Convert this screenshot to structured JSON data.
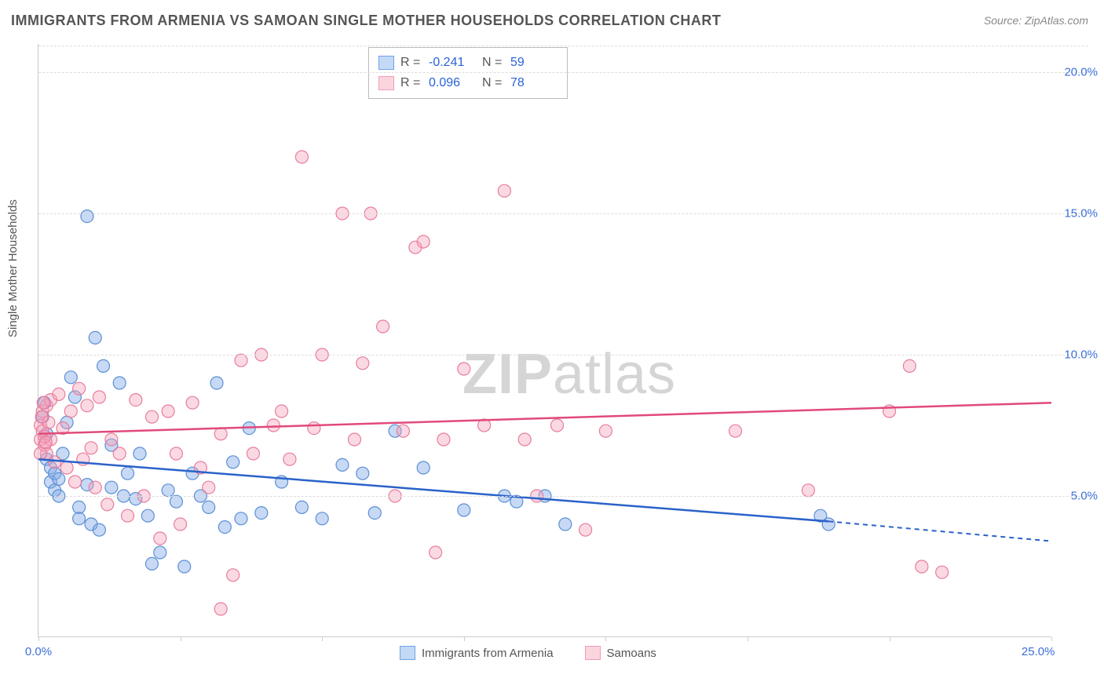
{
  "header": {
    "title": "IMMIGRANTS FROM ARMENIA VS SAMOAN SINGLE MOTHER HOUSEHOLDS CORRELATION CHART",
    "source": "Source: ZipAtlas.com"
  },
  "axes": {
    "y_label": "Single Mother Households",
    "x_min": 0.0,
    "x_max": 25.0,
    "y_min": 0.0,
    "y_max": 21.0,
    "y_ticks": [
      5.0,
      10.0,
      15.0,
      20.0
    ],
    "y_tick_labels": [
      "5.0%",
      "10.0%",
      "15.0%",
      "20.0%"
    ],
    "x_ticks": [
      0.0,
      3.5,
      7.0,
      10.5,
      14.0,
      17.5,
      21.0,
      25.0
    ],
    "x_tick_labels_visible": {
      "0.0": "0.0%",
      "25.0": "25.0%"
    },
    "grid_color": "#dddddd",
    "axis_color": "#cccccc",
    "tick_label_color": "#3b6fd8",
    "tick_label_fontsize": 15
  },
  "series": [
    {
      "name": "Immigrants from Armenia",
      "swatch_fill": "#c3d9f5",
      "swatch_stroke": "#6fa3e8",
      "point_fill": "rgba(130,170,230,0.45)",
      "point_stroke": "#5c8fd6",
      "line_color": "#2a62c9",
      "R": "-0.241",
      "N": "59",
      "regression": {
        "x1": 0.0,
        "y1": 6.3,
        "x2": 19.5,
        "y2": 4.1,
        "x2_dash": 25.0,
        "y2_dash": 3.4
      },
      "points": [
        [
          0.1,
          7.8
        ],
        [
          0.15,
          8.3
        ],
        [
          0.2,
          7.2
        ],
        [
          0.2,
          6.3
        ],
        [
          0.3,
          6.0
        ],
        [
          0.3,
          5.5
        ],
        [
          0.4,
          5.8
        ],
        [
          0.4,
          5.2
        ],
        [
          0.5,
          5.6
        ],
        [
          0.5,
          5.0
        ],
        [
          0.6,
          6.5
        ],
        [
          0.7,
          7.6
        ],
        [
          0.8,
          9.2
        ],
        [
          0.9,
          8.5
        ],
        [
          1.0,
          4.6
        ],
        [
          1.0,
          4.2
        ],
        [
          1.2,
          14.9
        ],
        [
          1.2,
          5.4
        ],
        [
          1.3,
          4.0
        ],
        [
          1.4,
          10.6
        ],
        [
          1.5,
          3.8
        ],
        [
          1.6,
          9.6
        ],
        [
          1.8,
          5.3
        ],
        [
          1.8,
          6.8
        ],
        [
          2.0,
          9.0
        ],
        [
          2.1,
          5.0
        ],
        [
          2.2,
          5.8
        ],
        [
          2.4,
          4.9
        ],
        [
          2.5,
          6.5
        ],
        [
          2.7,
          4.3
        ],
        [
          2.8,
          2.6
        ],
        [
          3.0,
          3.0
        ],
        [
          3.2,
          5.2
        ],
        [
          3.4,
          4.8
        ],
        [
          3.6,
          2.5
        ],
        [
          3.8,
          5.8
        ],
        [
          4.0,
          5.0
        ],
        [
          4.2,
          4.6
        ],
        [
          4.4,
          9.0
        ],
        [
          4.6,
          3.9
        ],
        [
          4.8,
          6.2
        ],
        [
          5.0,
          4.2
        ],
        [
          5.2,
          7.4
        ],
        [
          5.5,
          4.4
        ],
        [
          6.0,
          5.5
        ],
        [
          6.5,
          4.6
        ],
        [
          7.0,
          4.2
        ],
        [
          7.5,
          6.1
        ],
        [
          8.0,
          5.8
        ],
        [
          8.3,
          4.4
        ],
        [
          8.8,
          7.3
        ],
        [
          9.5,
          6.0
        ],
        [
          10.5,
          4.5
        ],
        [
          11.5,
          5.0
        ],
        [
          11.8,
          4.8
        ],
        [
          12.5,
          5.0
        ],
        [
          13.0,
          4.0
        ],
        [
          19.3,
          4.3
        ],
        [
          19.5,
          4.0
        ]
      ]
    },
    {
      "name": "Samoans",
      "swatch_fill": "#fbd5de",
      "swatch_stroke": "#f09eb4",
      "point_fill": "rgba(245,160,185,0.40)",
      "point_stroke": "#e87d9c",
      "line_color": "#e14a7a",
      "R": "0.096",
      "N": "78",
      "regression": {
        "x1": 0.0,
        "y1": 7.2,
        "x2": 25.0,
        "y2": 8.3
      },
      "points": [
        [
          0.05,
          7.0
        ],
        [
          0.05,
          7.5
        ],
        [
          0.1,
          8.0
        ],
        [
          0.1,
          7.3
        ],
        [
          0.15,
          6.8
        ],
        [
          0.2,
          8.2
        ],
        [
          0.2,
          6.5
        ],
        [
          0.25,
          7.6
        ],
        [
          0.3,
          8.4
        ],
        [
          0.3,
          7.0
        ],
        [
          0.4,
          6.2
        ],
        [
          0.5,
          8.6
        ],
        [
          0.6,
          7.4
        ],
        [
          0.7,
          6.0
        ],
        [
          0.8,
          8.0
        ],
        [
          0.9,
          5.5
        ],
        [
          1.0,
          8.8
        ],
        [
          1.1,
          6.3
        ],
        [
          1.2,
          8.2
        ],
        [
          1.3,
          6.7
        ],
        [
          1.4,
          5.3
        ],
        [
          1.5,
          8.5
        ],
        [
          1.7,
          4.7
        ],
        [
          1.8,
          7.0
        ],
        [
          2.0,
          6.5
        ],
        [
          2.2,
          4.3
        ],
        [
          2.4,
          8.4
        ],
        [
          2.6,
          5.0
        ],
        [
          2.8,
          7.8
        ],
        [
          3.0,
          3.5
        ],
        [
          3.2,
          8.0
        ],
        [
          3.4,
          6.5
        ],
        [
          3.5,
          4.0
        ],
        [
          3.8,
          8.3
        ],
        [
          4.0,
          6.0
        ],
        [
          4.2,
          5.3
        ],
        [
          4.5,
          7.2
        ],
        [
          4.5,
          1.0
        ],
        [
          4.8,
          2.2
        ],
        [
          5.0,
          9.8
        ],
        [
          5.3,
          6.5
        ],
        [
          5.5,
          10.0
        ],
        [
          5.8,
          7.5
        ],
        [
          6.0,
          8.0
        ],
        [
          6.2,
          6.3
        ],
        [
          6.5,
          17.0
        ],
        [
          6.8,
          7.4
        ],
        [
          7.0,
          10.0
        ],
        [
          7.5,
          15.0
        ],
        [
          7.8,
          7.0
        ],
        [
          8.0,
          9.7
        ],
        [
          8.2,
          15.0
        ],
        [
          8.5,
          11.0
        ],
        [
          8.8,
          5.0
        ],
        [
          9.0,
          7.3
        ],
        [
          9.3,
          13.8
        ],
        [
          9.5,
          14.0
        ],
        [
          9.8,
          3.0
        ],
        [
          10.0,
          7.0
        ],
        [
          10.5,
          9.5
        ],
        [
          11.0,
          7.5
        ],
        [
          11.5,
          15.8
        ],
        [
          12.0,
          7.0
        ],
        [
          12.3,
          5.0
        ],
        [
          12.8,
          7.5
        ],
        [
          13.5,
          3.8
        ],
        [
          14.0,
          7.3
        ],
        [
          17.2,
          7.3
        ],
        [
          19.0,
          5.2
        ],
        [
          21.0,
          8.0
        ],
        [
          21.5,
          9.6
        ],
        [
          21.8,
          2.5
        ],
        [
          22.3,
          2.3
        ],
        [
          0.05,
          6.5
        ],
        [
          0.08,
          7.8
        ],
        [
          0.12,
          8.3
        ],
        [
          0.15,
          7.1
        ],
        [
          0.18,
          6.9
        ]
      ]
    }
  ],
  "legend_bottom": {
    "items": [
      "Immigrants from Armenia",
      "Samoans"
    ]
  },
  "watermark": {
    "zip": "ZIP",
    "atlas": "atlas"
  }
}
